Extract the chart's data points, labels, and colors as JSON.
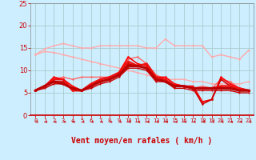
{
  "background_color": "#cceeff",
  "grid_color": "#aacccc",
  "xlabel": "Vent moyen/en rafales ( km/h )",
  "xlabel_color": "#cc0000",
  "tick_color": "#cc0000",
  "xlim": [
    -0.5,
    23.5
  ],
  "ylim": [
    0,
    25
  ],
  "yticks": [
    0,
    5,
    10,
    15,
    20,
    25
  ],
  "xticks": [
    0,
    1,
    2,
    3,
    4,
    5,
    6,
    7,
    8,
    9,
    10,
    11,
    12,
    13,
    14,
    15,
    16,
    17,
    18,
    19,
    20,
    21,
    22,
    23
  ],
  "series": [
    {
      "y": [
        13.5,
        14.8,
        15.5,
        16.0,
        15.5,
        15.0,
        15.0,
        15.5,
        15.5,
        15.5,
        15.5,
        15.5,
        15.0,
        15.0,
        17.0,
        15.5,
        15.5,
        15.5,
        15.5,
        13.0,
        13.5,
        13.0,
        12.5,
        14.5
      ],
      "color": "#ffaaaa",
      "lw": 1.0,
      "marker": "o",
      "ms": 1.8,
      "zorder": 2
    },
    {
      "y": [
        13.5,
        14.2,
        14.0,
        13.5,
        13.0,
        12.5,
        12.0,
        11.5,
        11.0,
        10.5,
        10.0,
        9.5,
        9.0,
        8.5,
        8.0,
        8.0,
        8.0,
        7.5,
        7.5,
        7.0,
        7.0,
        7.0,
        7.0,
        7.5
      ],
      "color": "#ffaaaa",
      "lw": 1.0,
      "marker": "o",
      "ms": 1.8,
      "zorder": 2
    },
    {
      "y": [
        5.5,
        6.5,
        8.0,
        8.5,
        8.0,
        8.5,
        8.5,
        8.5,
        8.5,
        9.5,
        12.5,
        13.0,
        11.5,
        9.0,
        8.0,
        6.5,
        6.5,
        6.0,
        6.5,
        6.0,
        8.0,
        7.5,
        6.0,
        5.5
      ],
      "color": "#ff6666",
      "lw": 1.0,
      "marker": "o",
      "ms": 1.8,
      "zorder": 3
    },
    {
      "y": [
        5.5,
        6.5,
        8.5,
        8.0,
        6.5,
        5.5,
        6.5,
        8.0,
        8.5,
        9.5,
        13.0,
        11.5,
        11.0,
        8.5,
        8.5,
        7.0,
        6.5,
        6.5,
        3.0,
        3.5,
        8.5,
        7.0,
        6.0,
        5.5
      ],
      "color": "#ff0000",
      "lw": 1.2,
      "marker": "o",
      "ms": 1.8,
      "zorder": 4
    },
    {
      "y": [
        5.5,
        6.5,
        7.5,
        7.5,
        6.0,
        5.5,
        6.5,
        7.5,
        8.0,
        9.0,
        11.5,
        11.0,
        10.5,
        8.0,
        8.0,
        6.5,
        6.5,
        6.0,
        2.5,
        3.5,
        8.0,
        6.5,
        5.5,
        5.5
      ],
      "color": "#cc0000",
      "lw": 1.2,
      "marker": "o",
      "ms": 1.8,
      "zorder": 4
    },
    {
      "y": [
        5.5,
        6.5,
        8.0,
        8.0,
        5.5,
        5.5,
        7.0,
        8.0,
        8.5,
        9.5,
        12.0,
        11.0,
        11.5,
        8.5,
        8.0,
        6.5,
        6.5,
        6.0,
        6.0,
        6.0,
        6.5,
        6.5,
        6.0,
        5.5
      ],
      "color": "#ee1111",
      "lw": 1.8,
      "marker": "o",
      "ms": 2.0,
      "zorder": 5
    },
    {
      "y": [
        5.5,
        6.0,
        7.0,
        7.0,
        6.0,
        5.5,
        6.0,
        7.0,
        7.5,
        8.5,
        10.5,
        10.5,
        10.0,
        7.5,
        7.5,
        6.0,
        6.0,
        5.5,
        5.5,
        5.5,
        5.5,
        5.5,
        5.0,
        5.0
      ],
      "color": "#cc0000",
      "lw": 1.0,
      "marker": "o",
      "ms": 1.5,
      "zorder": 4
    },
    {
      "y": [
        5.5,
        6.5,
        7.5,
        7.0,
        6.0,
        5.5,
        6.5,
        7.5,
        8.0,
        9.0,
        11.0,
        11.0,
        10.5,
        8.0,
        7.5,
        6.5,
        6.5,
        6.0,
        6.0,
        6.0,
        6.0,
        6.0,
        5.5,
        5.5
      ],
      "color": "#bb0000",
      "lw": 2.2,
      "marker": "o",
      "ms": 2.0,
      "zorder": 5
    }
  ],
  "font_size_xlabel": 7,
  "font_size_ticks": 6
}
